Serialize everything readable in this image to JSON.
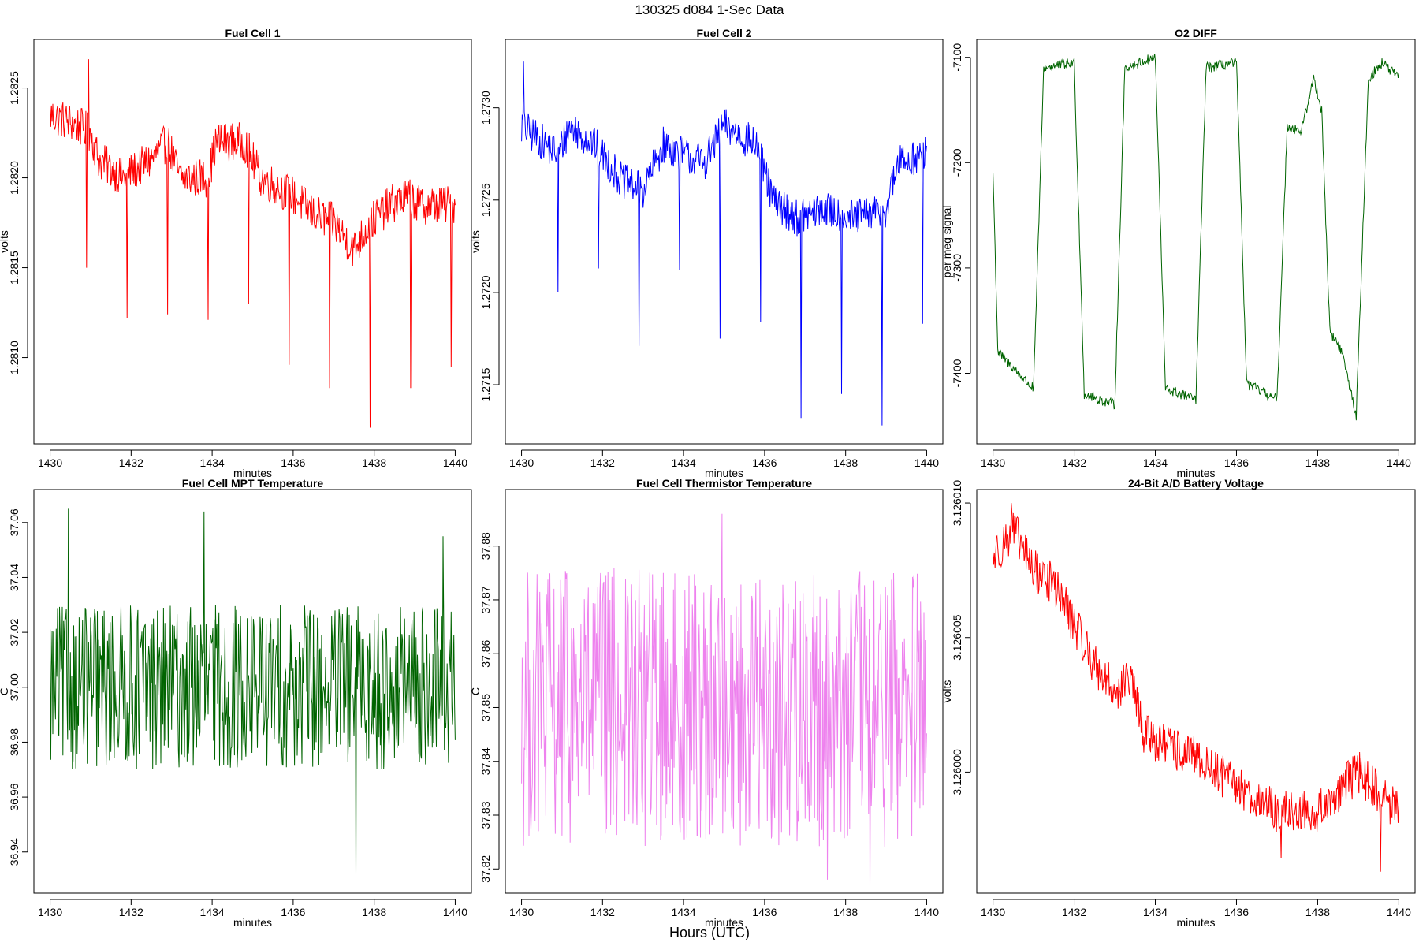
{
  "figure": {
    "title": "130325   d084   1-Sec Data",
    "bottom_label": "Hours (UTC)"
  },
  "chart_data": [
    {
      "type": "line",
      "title": "Fuel Cell 1",
      "xlabel": "minutes",
      "ylabel": "volts",
      "color": "#ff0000",
      "xlim": [
        1429.6,
        1440.4
      ],
      "ylim": [
        1.28052,
        1.28277
      ],
      "xticks": [
        "1430",
        "1432",
        "1434",
        "1436",
        "1438",
        "1440"
      ],
      "yticks": [
        "1.2810",
        "1.2815",
        "1.2820",
        "1.2825"
      ],
      "series_profile": {
        "base": [
          [
            1430,
            1.28235
          ],
          [
            1430.6,
            1.2823
          ],
          [
            1431.0,
            1.28225
          ],
          [
            1431.2,
            1.2821
          ],
          [
            1431.8,
            1.282
          ],
          [
            1432.5,
            1.2821
          ],
          [
            1432.9,
            1.2822
          ],
          [
            1433.2,
            1.282
          ],
          [
            1433.9,
            1.282
          ],
          [
            1434.1,
            1.2822
          ],
          [
            1434.8,
            1.2822
          ],
          [
            1435.2,
            1.282
          ],
          [
            1436.0,
            1.2819
          ],
          [
            1436.5,
            1.2818
          ],
          [
            1437.0,
            1.28175
          ],
          [
            1437.5,
            1.2816
          ],
          [
            1437.9,
            1.28175
          ],
          [
            1438.4,
            1.28185
          ],
          [
            1438.9,
            1.2819
          ],
          [
            1439.05,
            1.28185
          ],
          [
            1440,
            1.28185
          ]
        ],
        "noise": 0.00022,
        "spikes": [
          [
            1430.9,
            1.2815
          ],
          [
            1431.9,
            1.28122
          ],
          [
            1432.9,
            1.28124
          ],
          [
            1433.9,
            1.28121
          ],
          [
            1434.9,
            1.2813
          ],
          [
            1435.9,
            1.28096
          ],
          [
            1436.9,
            1.28083
          ],
          [
            1437.9,
            1.28061
          ],
          [
            1438.9,
            1.28083
          ],
          [
            1439.9,
            1.28095
          ],
          [
            1430.95,
            1.28266
          ]
        ]
      }
    },
    {
      "type": "line",
      "title": "Fuel Cell 2",
      "xlabel": "minutes",
      "ylabel": "volts",
      "color": "#0000ff",
      "xlim": [
        1429.6,
        1440.4
      ],
      "ylim": [
        1.27118,
        1.27337
      ],
      "xticks": [
        "1430",
        "1432",
        "1434",
        "1436",
        "1438",
        "1440"
      ],
      "yticks": [
        "1.2715",
        "1.2720",
        "1.2725",
        "1.2730"
      ],
      "series_profile": {
        "base": [
          [
            1430,
            1.2729
          ],
          [
            1430.9,
            1.27275
          ],
          [
            1431.2,
            1.2729
          ],
          [
            1431.8,
            1.2728
          ],
          [
            1432.5,
            1.2726
          ],
          [
            1433.0,
            1.27255
          ],
          [
            1433.5,
            1.2728
          ],
          [
            1434.5,
            1.2727
          ],
          [
            1435.0,
            1.2729
          ],
          [
            1435.8,
            1.2728
          ],
          [
            1436.2,
            1.2725
          ],
          [
            1436.8,
            1.2724
          ],
          [
            1437.5,
            1.27245
          ],
          [
            1438.2,
            1.2724
          ],
          [
            1439.0,
            1.27245
          ],
          [
            1439.3,
            1.2727
          ],
          [
            1440,
            1.27275
          ]
        ],
        "noise": 0.0002,
        "spikes": [
          [
            1430.9,
            1.272
          ],
          [
            1431.9,
            1.27213
          ],
          [
            1432.9,
            1.27171
          ],
          [
            1433.9,
            1.27212
          ],
          [
            1434.9,
            1.27175
          ],
          [
            1435.9,
            1.27184
          ],
          [
            1436.9,
            1.27132
          ],
          [
            1437.9,
            1.27145
          ],
          [
            1438.9,
            1.27128
          ],
          [
            1439.9,
            1.27183
          ],
          [
            1430.05,
            1.27325
          ]
        ]
      }
    },
    {
      "type": "line",
      "title": "O2 DIFF",
      "xlabel": "minutes",
      "ylabel": "per meg signal",
      "color": "#006400",
      "xlim": [
        1429.6,
        1440.4
      ],
      "ylim": [
        -7467,
        -7083
      ],
      "xticks": [
        "1430",
        "1432",
        "1434",
        "1436",
        "1438",
        "1440"
      ],
      "yticks": [
        "-7400",
        "-7300",
        "-7200",
        "-7100"
      ],
      "series_profile": {
        "base": [
          [
            1430,
            -7210
          ],
          [
            1430.12,
            -7380
          ],
          [
            1431.0,
            -7415
          ],
          [
            1431.25,
            -7110
          ],
          [
            1432.0,
            -7105
          ],
          [
            1432.25,
            -7420
          ],
          [
            1433.0,
            -7430
          ],
          [
            1433.25,
            -7110
          ],
          [
            1434.0,
            -7100
          ],
          [
            1434.25,
            -7415
          ],
          [
            1435.0,
            -7425
          ],
          [
            1435.25,
            -7110
          ],
          [
            1436.0,
            -7105
          ],
          [
            1436.25,
            -7410
          ],
          [
            1437.0,
            -7425
          ],
          [
            1437.25,
            -7165
          ],
          [
            1437.6,
            -7170
          ],
          [
            1437.9,
            -7120
          ],
          [
            1438.1,
            -7150
          ],
          [
            1438.3,
            -7360
          ],
          [
            1438.6,
            -7380
          ],
          [
            1438.95,
            -7440
          ],
          [
            1439.25,
            -7120
          ],
          [
            1439.6,
            -7105
          ],
          [
            1440,
            -7120
          ]
        ],
        "noise": 10,
        "spikes": []
      }
    },
    {
      "type": "line",
      "title": "Fuel Cell MPT Temperature",
      "xlabel": "minutes",
      "ylabel": "C",
      "color": "#006400",
      "xlim": [
        1429.6,
        1440.4
      ],
      "ylim": [
        36.925,
        37.072
      ],
      "xticks": [
        "1430",
        "1432",
        "1434",
        "1436",
        "1438",
        "1440"
      ],
      "yticks": [
        "36.94",
        "36.96",
        "36.98",
        "37.00",
        "37.02",
        "37.04",
        "37.06"
      ],
      "series_profile": {
        "base": [
          [
            1430,
            37.0
          ],
          [
            1440,
            37.0
          ]
        ],
        "noise": 0.06,
        "spikes": [
          [
            1430.45,
            37.065
          ],
          [
            1433.8,
            37.064
          ],
          [
            1437.55,
            36.932
          ],
          [
            1439.7,
            37.055
          ]
        ]
      }
    },
    {
      "type": "line",
      "title": "Fuel Cell Thermistor Temperature",
      "xlabel": "minutes",
      "ylabel": "C",
      "color": "#ee82ee",
      "xlim": [
        1429.6,
        1440.4
      ],
      "ylim": [
        37.8155,
        37.8905
      ],
      "xticks": [
        "1430",
        "1432",
        "1434",
        "1436",
        "1438",
        "1440"
      ],
      "yticks": [
        "37.82",
        "37.83",
        "37.84",
        "37.85",
        "37.86",
        "37.87",
        "37.88"
      ],
      "series_profile": {
        "base": [
          [
            1430,
            37.85
          ],
          [
            1440,
            37.85
          ]
        ],
        "noise": 0.052,
        "spikes": [
          [
            1434.95,
            37.886
          ],
          [
            1438.6,
            37.817
          ],
          [
            1437.55,
            37.818
          ]
        ]
      }
    },
    {
      "type": "line",
      "title": "24-Bit A/D Battery Voltage",
      "xlabel": "minutes",
      "ylabel": "volts",
      "color": "#ff0000",
      "xlim": [
        1429.6,
        1440.4
      ],
      "ylim": [
        3.1259955,
        3.1260105
      ],
      "xticks": [
        "1430",
        "1432",
        "1434",
        "1436",
        "1438",
        "1440"
      ],
      "yticks": [
        "3.126000",
        "3.126005",
        "3.126010"
      ],
      "series_profile": {
        "base": [
          [
            1430,
            3.126008
          ],
          [
            1430.5,
            3.126009
          ],
          [
            1431.0,
            3.1260075
          ],
          [
            1431.5,
            3.126007
          ],
          [
            1432.0,
            3.1260055
          ],
          [
            1432.5,
            3.126004
          ],
          [
            1433.0,
            3.126003
          ],
          [
            1433.4,
            3.1260035
          ],
          [
            1433.7,
            3.1260015
          ],
          [
            1434.2,
            3.126001
          ],
          [
            1435.0,
            3.1260005
          ],
          [
            1436.0,
            3.1259995
          ],
          [
            1437.0,
            3.1259985
          ],
          [
            1438.0,
            3.1259985
          ],
          [
            1439.0,
            3.126
          ],
          [
            1440,
            3.1259985
          ]
        ],
        "noise": 1.6e-06,
        "spikes": [
          [
            1430.45,
            3.12601
          ],
          [
            1439.55,
            3.1259963
          ],
          [
            1437.1,
            3.1259968
          ]
        ]
      }
    }
  ]
}
